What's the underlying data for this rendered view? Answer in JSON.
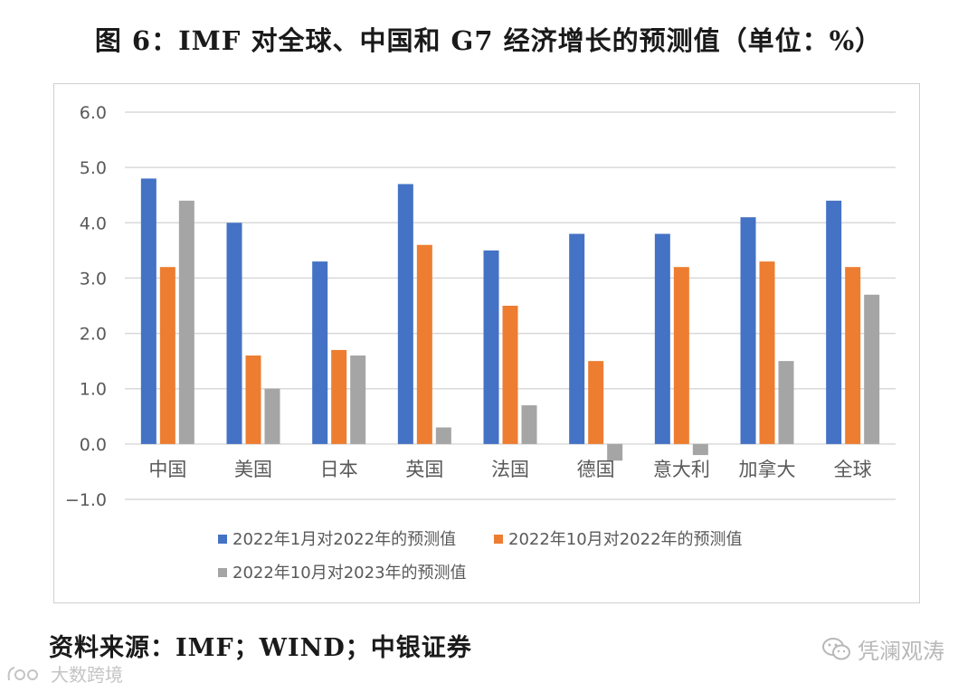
{
  "title": "图 6：IMF 对全球、中国和 G7 经济增长的预测值（单位：%）",
  "source": "资料来源：IMF；WIND；中银证券",
  "watermark_right": "凭澜观涛",
  "watermark_left": "大数跨境",
  "chart_data": {
    "type": "bar",
    "categories": [
      "中国",
      "美国",
      "日本",
      "英国",
      "法国",
      "德国",
      "意大利",
      "加拿大",
      "全球"
    ],
    "series": [
      {
        "name": "2022年1月对2022年的预测值",
        "color": "#4472C4",
        "values": [
          4.8,
          4.0,
          3.3,
          4.7,
          3.5,
          3.8,
          3.8,
          4.1,
          4.4
        ]
      },
      {
        "name": "2022年10月对2022年的预测值",
        "color": "#ED7D31",
        "values": [
          3.2,
          1.6,
          1.7,
          3.6,
          2.5,
          1.5,
          3.2,
          3.3,
          3.2
        ]
      },
      {
        "name": "2022年10月对2023年的预测值",
        "color": "#A5A5A5",
        "values": [
          4.4,
          1.0,
          1.6,
          0.3,
          0.7,
          -0.3,
          -0.2,
          1.5,
          2.7
        ]
      }
    ],
    "yticks": [
      "6.0",
      "5.0",
      "4.0",
      "3.0",
      "2.0",
      "1.0",
      "0.0",
      "−1.0"
    ],
    "ylim": [
      -1,
      6
    ],
    "grid": true,
    "legend_position": "bottom"
  }
}
